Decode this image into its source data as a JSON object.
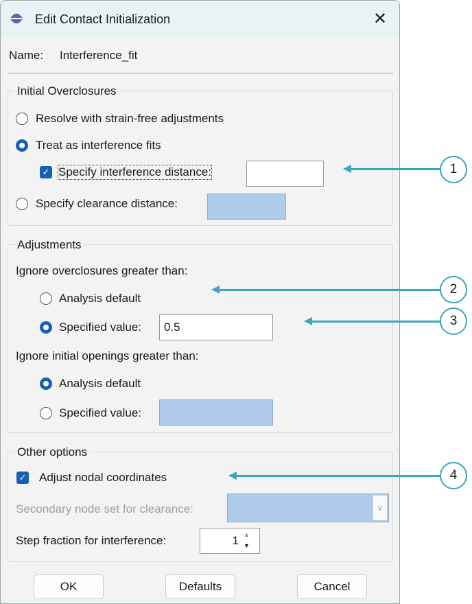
{
  "window": {
    "title": "Edit Contact Initialization",
    "close_icon": "close-icon"
  },
  "name": {
    "label": "Name:",
    "value": "Interference_fit"
  },
  "initial_overclosures": {
    "legend": "Initial Overclosures",
    "resolve": "Resolve with strain-free adjustments",
    "treat": "Treat as interference fits",
    "specify_interference": "Specify interference distance:",
    "interference_value": "",
    "specify_clearance": "Specify clearance distance:",
    "selected": "treat",
    "specify_interference_checked": true
  },
  "adjustments": {
    "legend": "Adjustments",
    "overclosures_label": "Ignore overclosures greater than:",
    "ov_default": "Analysis default",
    "ov_specified": "Specified value:",
    "ov_value": "0.5",
    "ov_selected": "specified",
    "openings_label": "Ignore initial openings greater than:",
    "op_default": "Analysis default",
    "op_specified": "Specified value:",
    "op_selected": "default"
  },
  "other": {
    "legend": "Other options",
    "adjust_nodal": "Adjust nodal coordinates",
    "adjust_checked": true,
    "secondary_label": "Secondary node set for clearance:",
    "step_label": "Step fraction for interference:",
    "step_value": "1"
  },
  "buttons": {
    "ok": "OK",
    "defaults": "Defaults",
    "cancel": "Cancel"
  },
  "callouts": [
    "1",
    "2",
    "3",
    "4"
  ],
  "colors": {
    "accent": "#1760b0",
    "callout": "#3aa7bd",
    "disabled_field": "#afcbea"
  }
}
